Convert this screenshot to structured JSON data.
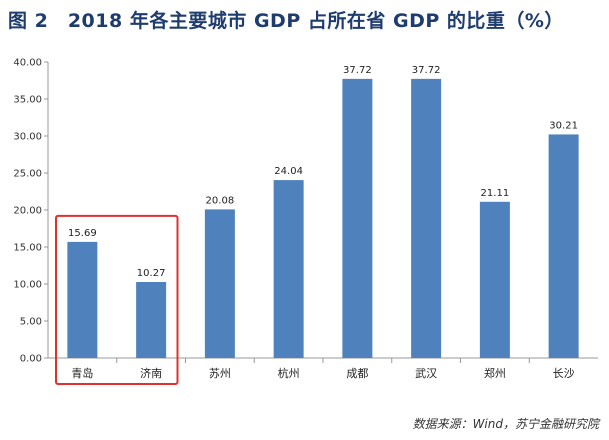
{
  "title": "图 2　2018 年各主要城市 GDP 占所在省 GDP 的比重（%）",
  "source": "数据来源：Wind，苏宁金融研究院",
  "colors": {
    "bar": "#4f81bd",
    "highlight_box": "#e03030",
    "title": "#1f3c6e"
  },
  "chart_data": {
    "type": "bar",
    "title": "图 2　2018 年各主要城市 GDP 占所在省 GDP 的比重（%）",
    "xlabel": "",
    "ylabel": "",
    "ylim": [
      0,
      40
    ],
    "ytick_labels": [
      "0.00",
      "5.00",
      "10.00",
      "15.00",
      "20.00",
      "25.00",
      "30.00",
      "35.00",
      "40.00"
    ],
    "categories": [
      "青岛",
      "济南",
      "苏州",
      "杭州",
      "成都",
      "武汉",
      "郑州",
      "长沙"
    ],
    "values": [
      15.69,
      10.27,
      20.08,
      24.04,
      37.72,
      37.72,
      21.11,
      30.21
    ],
    "value_labels": [
      "15.69",
      "10.27",
      "20.08",
      "24.04",
      "37.72",
      "37.72",
      "21.11",
      "30.21"
    ],
    "grid": false,
    "legend": "none",
    "highlighted_categories": [
      "青岛",
      "济南"
    ]
  }
}
